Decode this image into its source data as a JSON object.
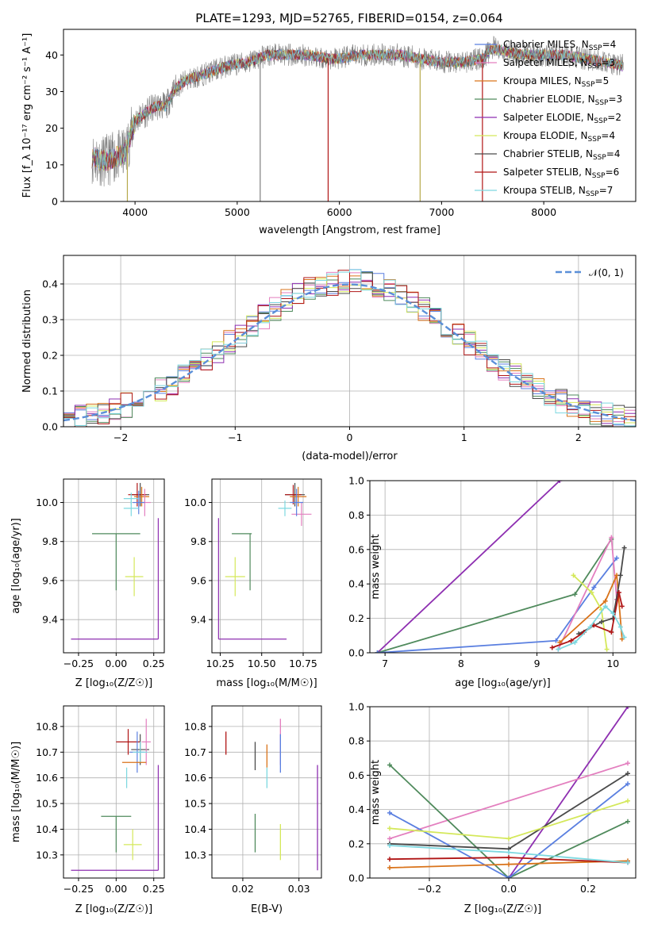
{
  "figure": {
    "title": "PLATE=1293, MJD=52765, FIBERID=0154, z=0.064"
  },
  "colors": {
    "Chabrier MILES": "#5a7fe0",
    "Salpeter MILES": "#e37fbf",
    "Kroupa MILES": "#d9731a",
    "Chabrier ELODIE": "#4f8a5c",
    "Salpeter ELODIE": "#8e2fb1",
    "Kroupa ELODIE": "#d4e85a",
    "Chabrier STELIB": "#4a4a4a",
    "Salpeter STELIB": "#b01515",
    "Kroupa STELIB": "#7dd8e0",
    "normal": "#5a8fd8"
  },
  "chart_data": [
    {
      "id": "spectrum",
      "type": "line",
      "xlabel": "wavelength [Angstrom, rest frame]",
      "ylabel": "Flux [f_λ 10⁻¹⁷ erg cm⁻² s⁻¹ A⁻¹]",
      "xlim": [
        3300,
        8900
      ],
      "ylim": [
        0,
        47
      ],
      "xticks": [
        "4000",
        "5000",
        "6000",
        "7000",
        "8000"
      ],
      "yticks": [
        "0",
        "10",
        "20",
        "30",
        "40"
      ],
      "grid": false,
      "legend_position": "right",
      "legend": [
        {
          "name": "Chabrier MILES",
          "nssp": "4"
        },
        {
          "name": "Salpeter MILES",
          "nssp": "3"
        },
        {
          "name": "Kroupa MILES",
          "nssp": "5"
        },
        {
          "name": "Chabrier ELODIE",
          "nssp": "3"
        },
        {
          "name": "Salpeter ELODIE",
          "nssp": "2"
        },
        {
          "name": "Kroupa ELODIE",
          "nssp": "4"
        },
        {
          "name": "Chabrier STELIB",
          "nssp": "4"
        },
        {
          "name": "Salpeter STELIB",
          "nssp": "6"
        },
        {
          "name": "Kroupa STELIB",
          "nssp": "7"
        }
      ],
      "continuum": [
        [
          3580,
          12
        ],
        [
          3700,
          11
        ],
        [
          3800,
          12
        ],
        [
          3900,
          13
        ],
        [
          4000,
          22
        ],
        [
          4100,
          24
        ],
        [
          4200,
          26
        ],
        [
          4300,
          26
        ],
        [
          4400,
          31
        ],
        [
          4500,
          33
        ],
        [
          4700,
          35
        ],
        [
          4900,
          37
        ],
        [
          5100,
          38
        ],
        [
          5300,
          40
        ],
        [
          5500,
          40
        ],
        [
          5700,
          40
        ],
        [
          5900,
          39
        ],
        [
          6000,
          39
        ],
        [
          6200,
          40
        ],
        [
          6400,
          40
        ],
        [
          6600,
          40
        ],
        [
          6800,
          39
        ],
        [
          7000,
          38
        ],
        [
          7200,
          38
        ],
        [
          7400,
          39
        ],
        [
          7500,
          42
        ],
        [
          7600,
          41
        ],
        [
          7800,
          40
        ],
        [
          8000,
          40
        ],
        [
          8200,
          40
        ],
        [
          8400,
          39
        ],
        [
          8600,
          38
        ],
        [
          8780,
          37
        ]
      ]
    },
    {
      "id": "residual-histogram",
      "type": "histogram",
      "xlabel": "(data-model)/error",
      "ylabel": "Normed distribution",
      "xlim": [
        -2.5,
        2.5
      ],
      "ylim": [
        0,
        0.48
      ],
      "xticks": [
        "−2",
        "−1",
        "0",
        "1",
        "2"
      ],
      "yticks": [
        "0.0",
        "0.1",
        "0.2",
        "0.3",
        "0.4"
      ],
      "grid": true,
      "legend_position": "top-right",
      "legend": [
        "𝒩(0, 1)"
      ],
      "bin_width": 0.1
    },
    {
      "id": "age-vs-Z",
      "type": "scatter",
      "xlabel": "Z [log₁₀(Z/Z☉)]",
      "ylabel": "age  [log₁₀(age/yr)]",
      "xlim": [
        -0.35,
        0.32
      ],
      "ylim": [
        9.23,
        10.12
      ],
      "xticks": [
        "−0.25",
        "0.00",
        "0.25"
      ],
      "yticks": [
        "9.4",
        "9.6",
        "9.8",
        "10.0"
      ],
      "grid": true
    },
    {
      "id": "age-vs-mass",
      "type": "scatter",
      "xlabel": "mass [log₁₀(M/M☉)]",
      "xlim": [
        10.2,
        10.86
      ],
      "ylim": [
        9.23,
        10.12
      ],
      "xticks": [
        "10.25",
        "10.50",
        "10.75"
      ],
      "yticks": [
        "9.4",
        "9.6",
        "9.8",
        "10.0"
      ],
      "grid": true
    },
    {
      "id": "massweight-vs-age",
      "type": "line",
      "xlabel": "age  [log₁₀(age/yr)]",
      "ylabel": "mass weight",
      "xlim": [
        6.8,
        10.3
      ],
      "ylim": [
        0,
        1
      ],
      "xticks": [
        "7",
        "8",
        "9",
        "10"
      ],
      "yticks": [
        "0.0",
        "0.2",
        "0.4",
        "0.6",
        "0.8",
        "1.0"
      ],
      "grid": true,
      "series": [
        {
          "model": "Salpeter ELODIE",
          "x": [
            6.9,
            9.3
          ],
          "y": [
            0.0,
            1.0
          ]
        },
        {
          "model": "Chabrier ELODIE",
          "x": [
            6.9,
            9.5,
            9.98
          ],
          "y": [
            0.0,
            0.34,
            0.66
          ]
        },
        {
          "model": "Chabrier MILES",
          "x": [
            6.9,
            9.25,
            9.75,
            10.05
          ],
          "y": [
            0.0,
            0.07,
            0.38,
            0.55
          ]
        },
        {
          "model": "Salpeter MILES",
          "x": [
            9.28,
            9.98,
            10.05
          ],
          "y": [
            0.02,
            0.67,
            0.31
          ]
        },
        {
          "model": "Kroupa MILES",
          "x": [
            9.3,
            9.9,
            10.05,
            10.12
          ],
          "y": [
            0.06,
            0.3,
            0.45,
            0.08
          ]
        },
        {
          "model": "Kroupa ELODIE",
          "x": [
            9.48,
            9.72,
            9.85,
            9.92
          ],
          "y": [
            0.45,
            0.35,
            0.25,
            0.02
          ]
        },
        {
          "model": "Chabrier STELIB",
          "x": [
            9.55,
            9.85,
            10.0,
            10.1,
            10.15
          ],
          "y": [
            0.11,
            0.18,
            0.2,
            0.45,
            0.61
          ]
        },
        {
          "model": "Salpeter STELIB",
          "x": [
            9.2,
            9.45,
            9.62,
            9.75,
            9.98,
            10.08,
            10.12
          ],
          "y": [
            0.03,
            0.07,
            0.12,
            0.16,
            0.12,
            0.35,
            0.27
          ]
        },
        {
          "model": "Kroupa STELIB",
          "x": [
            9.28,
            9.5,
            9.7,
            9.9,
            10.0,
            10.1,
            10.15
          ],
          "y": [
            0.02,
            0.06,
            0.15,
            0.27,
            0.23,
            0.15,
            0.09
          ]
        }
      ]
    },
    {
      "id": "mass-vs-Z",
      "type": "scatter",
      "xlabel": "Z [log₁₀(Z/Z☉)]",
      "ylabel": "mass [log₁₀(M/M☉)]",
      "xlim": [
        -0.35,
        0.32
      ],
      "ylim": [
        10.21,
        10.88
      ],
      "xticks": [
        "−0.25",
        "0.00",
        "0.25"
      ],
      "yticks": [
        "10.3",
        "10.4",
        "10.5",
        "10.6",
        "10.7",
        "10.8"
      ],
      "grid": true
    },
    {
      "id": "mass-vs-EBV",
      "type": "scatter",
      "xlabel": "E(B-V)",
      "xlim": [
        0.0145,
        0.034
      ],
      "ylim": [
        10.21,
        10.88
      ],
      "xticks": [
        "0.02",
        "0.03"
      ],
      "yticks": [
        "10.3",
        "10.4",
        "10.5",
        "10.6",
        "10.7",
        "10.8"
      ],
      "grid": true,
      "points": [
        {
          "model": "Salpeter STELIB",
          "x": 0.017,
          "ylo": 10.69,
          "yhi": 10.78
        },
        {
          "model": "Chabrier STELIB",
          "x": 0.0222,
          "ylo": 10.63,
          "yhi": 10.74
        },
        {
          "model": "Chabrier ELODIE",
          "x": 0.0222,
          "ylo": 10.31,
          "yhi": 10.46
        },
        {
          "model": "Kroupa MILES",
          "x": 0.0243,
          "ylo": 10.64,
          "yhi": 10.73
        },
        {
          "model": "Kroupa STELIB",
          "x": 0.0243,
          "ylo": 10.56,
          "yhi": 10.64
        },
        {
          "model": "Salpeter MILES",
          "x": 0.0267,
          "ylo": 10.65,
          "yhi": 10.83
        },
        {
          "model": "Chabrier MILES",
          "x": 0.0267,
          "ylo": 10.62,
          "yhi": 10.77
        },
        {
          "model": "Kroupa ELODIE",
          "x": 0.0267,
          "ylo": 10.28,
          "yhi": 10.42
        },
        {
          "model": "Salpeter ELODIE",
          "x": 0.0333,
          "ylo": 10.24,
          "yhi": 10.65
        }
      ]
    },
    {
      "id": "massweight-vs-Z",
      "type": "line",
      "xlabel": "Z [log₁₀(Z/Z☉)]",
      "ylabel": "mass weight",
      "xlim": [
        -0.35,
        0.32
      ],
      "ylim": [
        0,
        1
      ],
      "xticks": [
        "−0.2",
        "0.0",
        "0.2"
      ],
      "yticks": [
        "0.0",
        "0.2",
        "0.4",
        "0.6",
        "0.8",
        "1.0"
      ],
      "grid": true,
      "series": [
        {
          "model": "Salpeter ELODIE",
          "x": [
            0.0,
            0.3
          ],
          "y": [
            0.0,
            1.0
          ]
        },
        {
          "model": "Salpeter MILES",
          "x": [
            -0.3,
            0.3
          ],
          "y": [
            0.23,
            0.67
          ]
        },
        {
          "model": "Chabrier ELODIE",
          "x": [
            -0.3,
            0.0,
            0.3
          ],
          "y": [
            0.66,
            0.0,
            0.33
          ]
        },
        {
          "model": "Chabrier MILES",
          "x": [
            -0.3,
            0.0,
            0.3
          ],
          "y": [
            0.38,
            0.0,
            0.55
          ]
        },
        {
          "model": "Chabrier STELIB",
          "x": [
            -0.3,
            0.0,
            0.3
          ],
          "y": [
            0.2,
            0.17,
            0.61
          ]
        },
        {
          "model": "Kroupa ELODIE",
          "x": [
            -0.3,
            0.0,
            0.3
          ],
          "y": [
            0.29,
            0.23,
            0.45
          ]
        },
        {
          "model": "Kroupa MILES",
          "x": [
            -0.3,
            0.0,
            0.3
          ],
          "y": [
            0.06,
            0.08,
            0.1
          ]
        },
        {
          "model": "Salpeter STELIB",
          "x": [
            -0.3,
            0.0,
            0.3
          ],
          "y": [
            0.11,
            0.12,
            0.09
          ]
        },
        {
          "model": "Kroupa STELIB",
          "x": [
            -0.3,
            0.0,
            0.3
          ],
          "y": [
            0.19,
            0.15,
            0.09
          ]
        }
      ]
    }
  ]
}
